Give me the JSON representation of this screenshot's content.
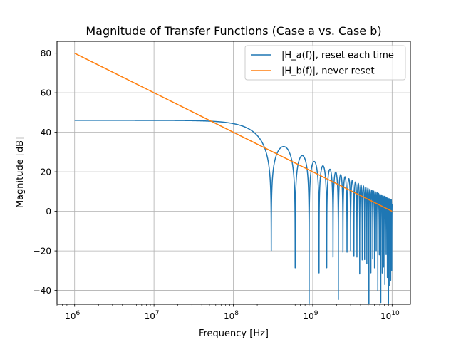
{
  "chart_data": {
    "type": "line",
    "title": "Magnitude of Transfer Functions (Case a vs. Case b)",
    "xlabel": "Frequency [Hz]",
    "ylabel": "Magnitude [dB]",
    "xscale": "log",
    "xlim": [
      600000.0,
      17000000000.0
    ],
    "ylim": [
      -47,
      86
    ],
    "x_ticks": [
      {
        "base": "10",
        "exp": "6",
        "value": 1000000.0
      },
      {
        "base": "10",
        "exp": "7",
        "value": 10000000.0
      },
      {
        "base": "10",
        "exp": "8",
        "value": 100000000.0
      },
      {
        "base": "10",
        "exp": "9",
        "value": 1000000000.0
      },
      {
        "base": "10",
        "exp": "10",
        "value": 10000000000.0
      }
    ],
    "y_ticks": [
      {
        "label": "80",
        "value": 80
      },
      {
        "label": "60",
        "value": 60
      },
      {
        "label": "40",
        "value": 40
      },
      {
        "label": "20",
        "value": 20
      },
      {
        "label": "0",
        "value": 0
      },
      {
        "label": "−20",
        "value": -20
      },
      {
        "label": "−40",
        "value": -40
      }
    ],
    "grid": true,
    "legend_position": "top-right",
    "series": [
      {
        "name": "|H_a(f)|, reset each time",
        "color": "#1f77b4",
        "model": "|sinc(f*T)| * 200 with T = 3.33e-9 s (periodic nulls at multiples of ~3e8 Hz)",
        "x_range": [
          1000000.0,
          10000000000.0
        ],
        "approx_low_freq_level_db": 46.2
      },
      {
        "name": "|H_b(f)|, never reset",
        "color": "#ff7f0e",
        "x": [
          1000000.0,
          10000000000.0
        ],
        "y": [
          80,
          0
        ]
      }
    ]
  }
}
